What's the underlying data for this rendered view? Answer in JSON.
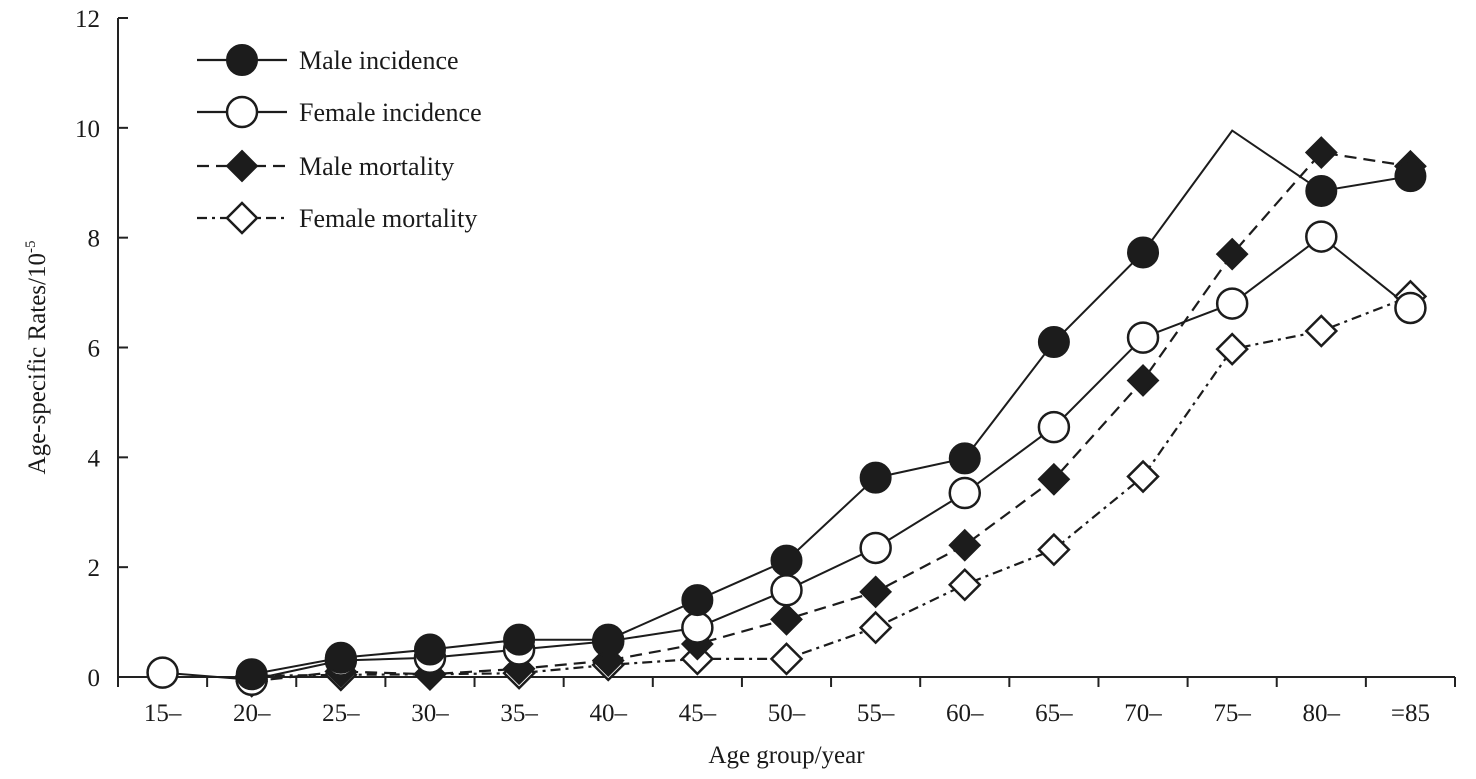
{
  "chart_data": {
    "type": "line",
    "title": "",
    "xlabel": "Age group/year",
    "ylabel": "Age-specific Rates/10",
    "ylabel_sup": "-5",
    "categories": [
      "15–",
      "20–",
      "25–",
      "30–",
      "35–",
      "40–",
      "45–",
      "50–",
      "55–",
      "60–",
      "65–",
      "70–",
      "75–",
      "80–",
      "=85"
    ],
    "ylim": [
      0,
      12
    ],
    "yticks": [
      0,
      2,
      4,
      6,
      8,
      10,
      12
    ],
    "legend_position": "top-left",
    "series": [
      {
        "name": "Male incidence",
        "line_style": "solid",
        "marker": "filled-circle",
        "values": [
          null,
          0.05,
          0.35,
          0.5,
          0.68,
          0.68,
          1.4,
          2.12,
          3.63,
          3.98,
          6.1,
          7.73,
          9.95,
          8.85,
          9.12
        ]
      },
      {
        "name": "Female incidence",
        "line_style": "solid",
        "marker": "open-circle",
        "values": [
          0.08,
          -0.05,
          0.3,
          0.35,
          0.5,
          0.65,
          0.9,
          1.58,
          2.35,
          3.35,
          4.55,
          6.18,
          6.8,
          8.02,
          6.72
        ]
      },
      {
        "name": "Male mortality",
        "line_style": "dashed",
        "marker": "filled-diamond",
        "values": [
          null,
          -0.08,
          0.1,
          0.05,
          0.15,
          0.3,
          0.6,
          1.05,
          1.55,
          2.4,
          3.6,
          5.4,
          7.7,
          9.55,
          9.3
        ]
      },
      {
        "name": "Female mortality",
        "line_style": "dash-dot",
        "marker": "open-diamond",
        "values": [
          null,
          0.02,
          0.04,
          0.05,
          0.07,
          0.22,
          0.33,
          0.33,
          0.9,
          1.68,
          2.32,
          3.65,
          5.97,
          6.3,
          6.93
        ]
      }
    ]
  }
}
